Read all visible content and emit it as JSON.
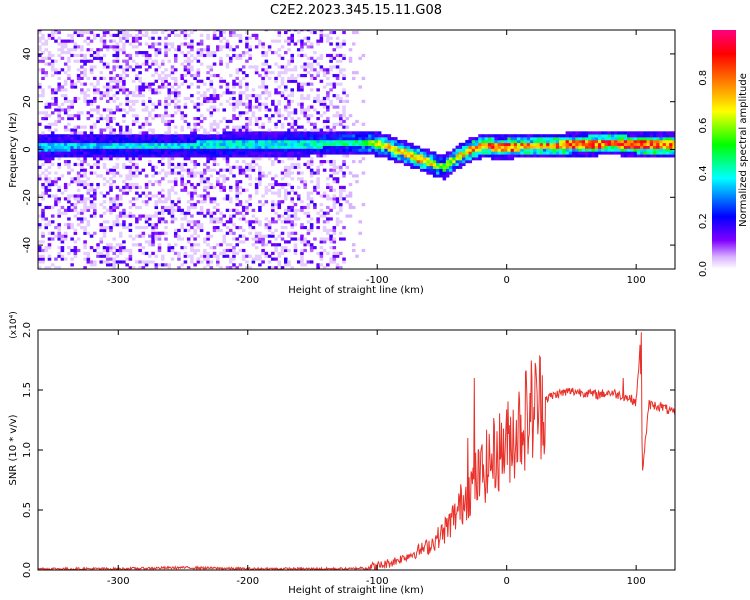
{
  "figure_title": "C2E2.2023.345.15.11.G08",
  "chart_data": [
    {
      "type": "heatmap",
      "xlabel": "Height of straight line (km)",
      "ylabel": "Frequency (Hz)",
      "xlim": [
        -362,
        130
      ],
      "ylim": [
        -50,
        50
      ],
      "x_ticks": [
        -300,
        -200,
        -100,
        0,
        100
      ],
      "y_ticks": [
        -40,
        -20,
        0,
        20,
        40
      ],
      "grid": false,
      "colorbar": {
        "label": "Normalized spectral amplitude",
        "range": [
          0,
          1
        ],
        "ticks": [
          0.0,
          0.2,
          0.4,
          0.6,
          0.8
        ],
        "colormap": [
          "#ffffff",
          "#7f00ff",
          "#0000ff",
          "#00ffff",
          "#00ff00",
          "#ffff00",
          "#ff7f00",
          "#ff0000",
          "#ff0080"
        ]
      },
      "ridge": {
        "description_points_x": [
          -362,
          -300,
          -200,
          -130,
          -110,
          -95,
          -80,
          -70,
          -60,
          -50,
          -40,
          -30,
          -20,
          -10,
          0,
          20,
          50,
          80,
          100,
          130
        ],
        "frequency_hz": [
          0.5,
          1,
          1.5,
          2,
          2.5,
          1,
          -2,
          -4,
          -6,
          -8,
          -4,
          -1,
          1,
          0.5,
          0.5,
          1,
          1.5,
          2,
          1.5,
          1.5
        ],
        "peak_amplitude": [
          0.35,
          0.4,
          0.4,
          0.45,
          0.55,
          0.7,
          0.75,
          0.8,
          0.7,
          0.55,
          0.7,
          0.8,
          0.85,
          0.85,
          0.85,
          0.8,
          0.85,
          0.9,
          0.9,
          0.85
        ]
      }
    },
    {
      "type": "line",
      "xlabel": "Height of straight line (km)",
      "ylabel": "SNR (10 * v/v)",
      "y_multiplier": "(x10⁴)",
      "xlim": [
        -362,
        130
      ],
      "ylim": [
        0,
        2.0
      ],
      "x_ticks": [
        -300,
        -200,
        -100,
        0,
        100
      ],
      "y_ticks": [
        0.0,
        0.5,
        1.0,
        1.5,
        2.0
      ],
      "grid": false,
      "line_color": "#e8312a",
      "series": [
        {
          "x": [
            -362,
            -300,
            -250,
            -200,
            -150,
            -120,
            -100,
            -90,
            -80,
            -70,
            -60,
            -50,
            -40,
            -30,
            -20,
            -10,
            0,
            10,
            20,
            30,
            40,
            50,
            60,
            70,
            80,
            90,
            95,
            100,
            103,
            105,
            110,
            120,
            130
          ],
          "values": [
            0.01,
            0.01,
            0.02,
            0.01,
            0.01,
            0.01,
            0.03,
            0.06,
            0.1,
            0.15,
            0.2,
            0.3,
            0.45,
            0.65,
            0.8,
            0.95,
            1.05,
            1.2,
            1.35,
            1.43,
            1.47,
            1.49,
            1.48,
            1.46,
            1.48,
            1.45,
            1.43,
            1.4,
            1.85,
            0.85,
            1.38,
            1.36,
            1.3
          ],
          "spikes": [
            {
              "x": -25,
              "value": 1.6
            },
            {
              "x": -30,
              "value": 1.1
            },
            {
              "x": -45,
              "value": 0.4
            },
            {
              "x": 90,
              "value": 1.6
            },
            {
              "x": 104,
              "value": 1.98
            },
            {
              "x": 105,
              "value": 0.83
            }
          ]
        }
      ]
    }
  ]
}
